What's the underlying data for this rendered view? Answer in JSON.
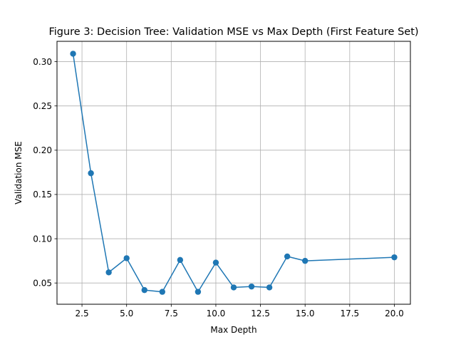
{
  "chart_data": {
    "type": "line",
    "title": "Figure 3: Decision Tree: Validation MSE vs Max Depth (First Feature Set)",
    "xlabel": "Max Depth",
    "ylabel": "Validation MSE",
    "xlim": [
      1.1,
      20.9
    ],
    "ylim": [
      0.026,
      0.323
    ],
    "grid": true,
    "x_ticks": [
      2.5,
      5.0,
      7.5,
      10.0,
      12.5,
      15.0,
      17.5,
      20.0
    ],
    "x_tick_labels": [
      "2.5",
      "5.0",
      "7.5",
      "10.0",
      "12.5",
      "15.0",
      "17.5",
      "20.0"
    ],
    "y_ticks": [
      0.05,
      0.1,
      0.15,
      0.2,
      0.25,
      0.3
    ],
    "y_tick_labels": [
      "0.05",
      "0.10",
      "0.15",
      "0.20",
      "0.25",
      "0.30"
    ],
    "series": [
      {
        "color": "#1f77b4",
        "marker": "circle",
        "x": [
          2,
          3,
          4,
          5,
          6,
          7,
          8,
          9,
          10,
          11,
          12,
          13,
          14,
          15,
          20
        ],
        "y": [
          0.309,
          0.174,
          0.062,
          0.078,
          0.042,
          0.04,
          0.076,
          0.04,
          0.073,
          0.045,
          0.046,
          0.045,
          0.08,
          0.075,
          0.079
        ]
      }
    ]
  }
}
